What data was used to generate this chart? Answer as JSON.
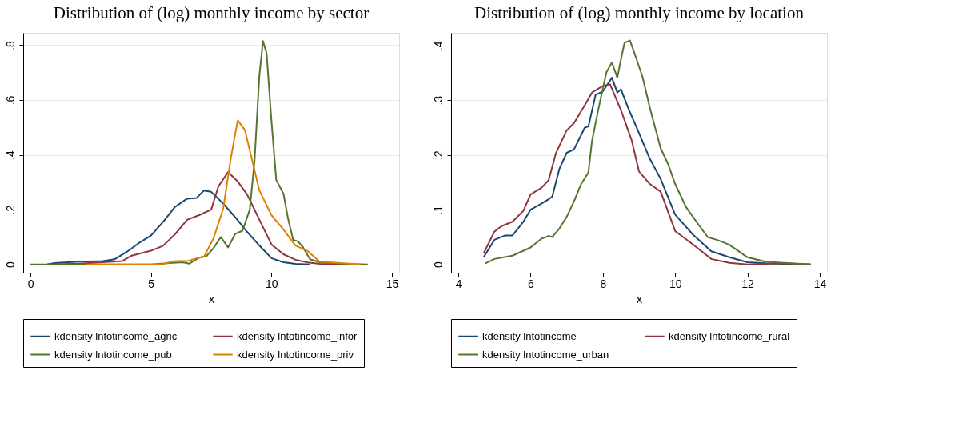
{
  "chart_data": [
    {
      "type": "line",
      "title": "Distribution of (log) monthly income by sector",
      "xlabel": "x",
      "xlim": [
        -0.3,
        15.3
      ],
      "xticks": [
        0,
        5,
        10,
        15
      ],
      "ylim": [
        -0.03,
        0.845
      ],
      "yticks": [
        0,
        {
          "value": 0.2,
          "label": ".2"
        },
        {
          "value": 0.4,
          "label": ".4"
        },
        {
          "value": 0.6,
          "label": ".6"
        },
        {
          "value": 0.8,
          "label": ".8"
        }
      ],
      "grid": "y",
      "legend": "bottom",
      "line_style": "solid",
      "marker": "none",
      "series": [
        {
          "name": "kdensity lntotincome_agric",
          "color": "#1a476f",
          "x": [
            0.7,
            1.0,
            2.0,
            3.0,
            3.5,
            4.0,
            4.5,
            5.0,
            5.5,
            6.0,
            6.5,
            6.9,
            7.2,
            7.5,
            8.0,
            8.5,
            9.0,
            9.5,
            10.0,
            10.5,
            11.0,
            11.6
          ],
          "values": [
            0,
            0.005,
            0.01,
            0.012,
            0.019,
            0.046,
            0.078,
            0.105,
            0.155,
            0.21,
            0.24,
            0.243,
            0.27,
            0.265,
            0.222,
            0.172,
            0.118,
            0.069,
            0.023,
            0.008,
            0.002,
            0
          ]
        },
        {
          "name": "kdensity lntotincome_infor",
          "color": "#90353b",
          "x": [
            0.7,
            2.0,
            3.0,
            3.8,
            4.2,
            5.0,
            5.5,
            6.0,
            6.5,
            7.0,
            7.5,
            7.8,
            8.2,
            8.6,
            9.0,
            9.5,
            10.0,
            10.5,
            11.0,
            11.5,
            12.0,
            13.5
          ],
          "values": [
            0,
            0.003,
            0.008,
            0.012,
            0.032,
            0.05,
            0.068,
            0.11,
            0.163,
            0.18,
            0.2,
            0.285,
            0.337,
            0.303,
            0.254,
            0.163,
            0.073,
            0.037,
            0.017,
            0.007,
            0.002,
            0
          ]
        },
        {
          "name": "kdensity lntotincome_pub",
          "color": "#55752f",
          "x": [
            0,
            5.0,
            5.8,
            6.3,
            6.6,
            7.0,
            7.3,
            7.6,
            7.9,
            8.2,
            8.5,
            8.8,
            9.1,
            9.3,
            9.5,
            9.65,
            9.8,
            10.0,
            10.2,
            10.5,
            10.7,
            10.9,
            11.1,
            11.3,
            11.6,
            12.0,
            13.0,
            14.0
          ],
          "values": [
            0,
            0,
            0.005,
            0.008,
            0.003,
            0.025,
            0.03,
            0.06,
            0.1,
            0.062,
            0.112,
            0.123,
            0.2,
            0.38,
            0.69,
            0.815,
            0.77,
            0.525,
            0.308,
            0.258,
            0.163,
            0.09,
            0.084,
            0.064,
            0.019,
            0.008,
            0.002,
            0
          ]
        },
        {
          "name": "kdensity lntotincome_priv",
          "color": "#e37e00",
          "x": [
            2.3,
            5.4,
            6.0,
            6.5,
            7.0,
            7.2,
            7.6,
            8.0,
            8.3,
            8.6,
            8.9,
            9.2,
            9.5,
            10.0,
            10.5,
            11.0,
            11.5,
            12.0,
            13.0,
            13.7
          ],
          "values": [
            0,
            0,
            0.012,
            0.012,
            0.025,
            0.028,
            0.096,
            0.204,
            0.38,
            0.526,
            0.49,
            0.38,
            0.27,
            0.18,
            0.127,
            0.069,
            0.049,
            0.01,
            0.004,
            0
          ]
        }
      ]
    },
    {
      "type": "line",
      "title": "Distribution of (log) monthly income by location",
      "xlabel": "x",
      "xlim": [
        3.8,
        14.2
      ],
      "xticks": [
        4,
        6,
        8,
        10,
        12,
        14
      ],
      "ylim": [
        -0.015,
        0.423
      ],
      "yticks": [
        0,
        {
          "value": 0.1,
          "label": ".1"
        },
        {
          "value": 0.2,
          "label": ".2"
        },
        {
          "value": 0.3,
          "label": ".3"
        },
        {
          "value": 0.4,
          "label": ".4"
        }
      ],
      "grid": "y",
      "legend": "bottom",
      "line_style": "solid",
      "marker": "none",
      "series": [
        {
          "name": "kdensity lntotincome",
          "color": "#1a476f",
          "x": [
            4.7,
            5.0,
            5.3,
            5.5,
            5.8,
            6.0,
            6.3,
            6.5,
            6.6,
            6.8,
            7.0,
            7.2,
            7.5,
            7.6,
            7.8,
            8.0,
            8.25,
            8.4,
            8.5,
            8.7,
            9.0,
            9.3,
            9.6,
            10.0,
            10.5,
            11.0,
            11.5,
            12.0,
            12.5,
            13.0,
            13.75
          ],
          "values": [
            0.013,
            0.045,
            0.053,
            0.053,
            0.078,
            0.1,
            0.111,
            0.119,
            0.124,
            0.175,
            0.204,
            0.21,
            0.25,
            0.252,
            0.31,
            0.316,
            0.341,
            0.314,
            0.32,
            0.286,
            0.24,
            0.193,
            0.156,
            0.091,
            0.054,
            0.024,
            0.013,
            0.004,
            0.002,
            0.001,
            0
          ]
        },
        {
          "name": "kdensity lntotincome_rural",
          "color": "#90353b",
          "x": [
            4.7,
            5.0,
            5.2,
            5.5,
            5.8,
            6.0,
            6.3,
            6.5,
            6.7,
            7.0,
            7.2,
            7.5,
            7.7,
            8.0,
            8.2,
            8.5,
            8.8,
            9.0,
            9.3,
            9.6,
            10.0,
            10.5,
            11.0,
            11.5,
            12.0,
            13.0,
            13.75
          ],
          "values": [
            0.02,
            0.06,
            0.07,
            0.078,
            0.098,
            0.128,
            0.14,
            0.154,
            0.203,
            0.245,
            0.258,
            0.291,
            0.314,
            0.326,
            0.329,
            0.282,
            0.226,
            0.17,
            0.147,
            0.133,
            0.061,
            0.036,
            0.01,
            0.003,
            0,
            0.002,
            0
          ]
        },
        {
          "name": "kdensity lntotincome_urban",
          "color": "#55752f",
          "x": [
            4.75,
            5.0,
            5.5,
            6.0,
            6.3,
            6.5,
            6.6,
            6.8,
            7.0,
            7.2,
            7.4,
            7.6,
            7.7,
            7.9,
            8.1,
            8.25,
            8.4,
            8.5,
            8.6,
            8.75,
            8.9,
            9.1,
            9.3,
            9.6,
            9.8,
            10.0,
            10.3,
            10.6,
            10.9,
            11.2,
            11.5,
            12.0,
            12.5,
            13.0,
            13.75
          ],
          "values": [
            0.002,
            0.01,
            0.016,
            0.031,
            0.047,
            0.052,
            0.05,
            0.066,
            0.087,
            0.115,
            0.147,
            0.168,
            0.226,
            0.291,
            0.351,
            0.369,
            0.341,
            0.374,
            0.405,
            0.409,
            0.381,
            0.342,
            0.286,
            0.212,
            0.184,
            0.147,
            0.105,
            0.077,
            0.05,
            0.044,
            0.036,
            0.013,
            0.005,
            0.003,
            0
          ]
        }
      ]
    }
  ]
}
